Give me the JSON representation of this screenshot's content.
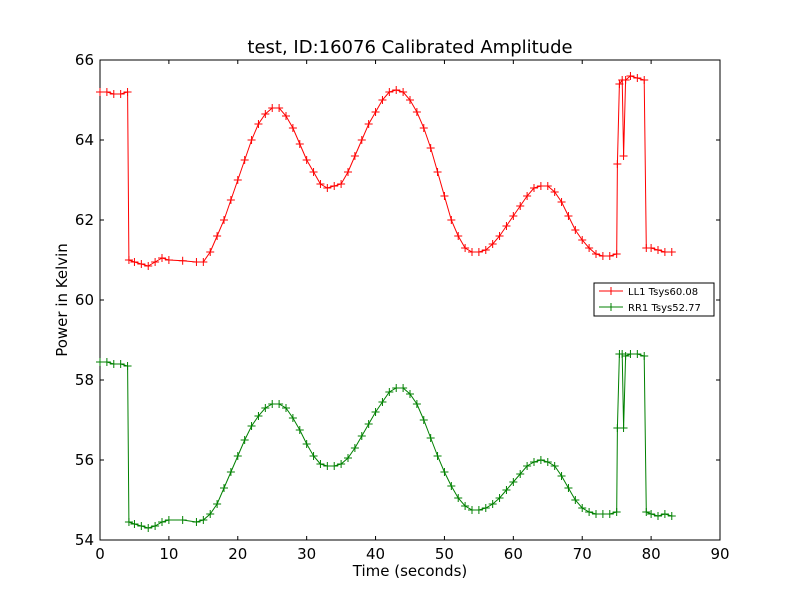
{
  "chart_data": {
    "type": "line",
    "title": "test, ID:16076 Calibrated Amplitude",
    "xlabel": "Time (seconds)",
    "ylabel": "Power in Kelvin",
    "xlim": [
      0,
      90
    ],
    "ylim": [
      54,
      66
    ],
    "xticks": [
      0,
      10,
      20,
      30,
      40,
      50,
      60,
      70,
      80,
      90
    ],
    "yticks": [
      54,
      56,
      58,
      60,
      62,
      64,
      66
    ],
    "grid": false,
    "legend_position": "center-right",
    "marker": "+",
    "series": [
      {
        "name": "LL1 Tsys60.08",
        "color": "#ff0000",
        "points": [
          [
            0,
            65.2
          ],
          [
            1,
            65.2
          ],
          [
            2,
            65.15
          ],
          [
            3,
            65.15
          ],
          [
            4,
            65.2
          ],
          [
            4.2,
            61.0
          ],
          [
            5,
            60.95
          ],
          [
            6,
            60.9
          ],
          [
            7,
            60.85
          ],
          [
            8,
            60.95
          ],
          [
            9,
            61.05
          ],
          [
            10,
            61.0
          ],
          [
            12,
            60.98
          ],
          [
            14,
            60.95
          ],
          [
            15,
            60.95
          ],
          [
            16,
            61.2
          ],
          [
            17,
            61.6
          ],
          [
            18,
            62.0
          ],
          [
            19,
            62.5
          ],
          [
            20,
            63.0
          ],
          [
            21,
            63.5
          ],
          [
            22,
            64.0
          ],
          [
            23,
            64.4
          ],
          [
            24,
            64.65
          ],
          [
            25,
            64.8
          ],
          [
            26,
            64.8
          ],
          [
            27,
            64.6
          ],
          [
            28,
            64.3
          ],
          [
            29,
            63.9
          ],
          [
            30,
            63.5
          ],
          [
            31,
            63.2
          ],
          [
            32,
            62.9
          ],
          [
            33,
            62.8
          ],
          [
            34,
            62.85
          ],
          [
            35,
            62.9
          ],
          [
            36,
            63.2
          ],
          [
            37,
            63.6
          ],
          [
            38,
            64.0
          ],
          [
            39,
            64.4
          ],
          [
            40,
            64.7
          ],
          [
            41,
            65.0
          ],
          [
            42,
            65.2
          ],
          [
            43,
            65.25
          ],
          [
            44,
            65.2
          ],
          [
            45,
            65.0
          ],
          [
            46,
            64.7
          ],
          [
            47,
            64.3
          ],
          [
            48,
            63.8
          ],
          [
            49,
            63.2
          ],
          [
            50,
            62.6
          ],
          [
            51,
            62.0
          ],
          [
            52,
            61.6
          ],
          [
            53,
            61.3
          ],
          [
            54,
            61.2
          ],
          [
            55,
            61.2
          ],
          [
            56,
            61.25
          ],
          [
            57,
            61.4
          ],
          [
            58,
            61.6
          ],
          [
            59,
            61.85
          ],
          [
            60,
            62.1
          ],
          [
            61,
            62.35
          ],
          [
            62,
            62.6
          ],
          [
            63,
            62.8
          ],
          [
            64,
            62.85
          ],
          [
            65,
            62.85
          ],
          [
            66,
            62.7
          ],
          [
            67,
            62.45
          ],
          [
            68,
            62.1
          ],
          [
            69,
            61.75
          ],
          [
            70,
            61.5
          ],
          [
            71,
            61.3
          ],
          [
            72,
            61.15
          ],
          [
            73,
            61.1
          ],
          [
            74,
            61.1
          ],
          [
            75,
            61.15
          ],
          [
            75.1,
            63.4
          ],
          [
            75.4,
            65.4
          ],
          [
            75.8,
            65.5
          ],
          [
            76.0,
            63.6
          ],
          [
            76.3,
            65.5
          ],
          [
            77,
            65.6
          ],
          [
            78,
            65.55
          ],
          [
            79,
            65.5
          ],
          [
            79.3,
            61.3
          ],
          [
            80,
            61.3
          ],
          [
            81,
            61.25
          ],
          [
            82,
            61.2
          ],
          [
            83,
            61.2
          ]
        ]
      },
      {
        "name": "RR1 Tsys52.77",
        "color": "#008000",
        "points": [
          [
            0,
            58.45
          ],
          [
            1,
            58.45
          ],
          [
            2,
            58.4
          ],
          [
            3,
            58.4
          ],
          [
            4,
            58.35
          ],
          [
            4.2,
            54.45
          ],
          [
            5,
            54.4
          ],
          [
            6,
            54.35
          ],
          [
            7,
            54.3
          ],
          [
            8,
            54.35
          ],
          [
            9,
            54.45
          ],
          [
            10,
            54.5
          ],
          [
            12,
            54.5
          ],
          [
            14,
            54.45
          ],
          [
            15,
            54.5
          ],
          [
            16,
            54.65
          ],
          [
            17,
            54.9
          ],
          [
            18,
            55.3
          ],
          [
            19,
            55.7
          ],
          [
            20,
            56.1
          ],
          [
            21,
            56.5
          ],
          [
            22,
            56.85
          ],
          [
            23,
            57.1
          ],
          [
            24,
            57.3
          ],
          [
            25,
            57.4
          ],
          [
            26,
            57.4
          ],
          [
            27,
            57.3
          ],
          [
            28,
            57.05
          ],
          [
            29,
            56.75
          ],
          [
            30,
            56.4
          ],
          [
            31,
            56.1
          ],
          [
            32,
            55.9
          ],
          [
            33,
            55.85
          ],
          [
            34,
            55.85
          ],
          [
            35,
            55.9
          ],
          [
            36,
            56.05
          ],
          [
            37,
            56.3
          ],
          [
            38,
            56.6
          ],
          [
            39,
            56.9
          ],
          [
            40,
            57.2
          ],
          [
            41,
            57.45
          ],
          [
            42,
            57.7
          ],
          [
            43,
            57.8
          ],
          [
            44,
            57.8
          ],
          [
            45,
            57.65
          ],
          [
            46,
            57.4
          ],
          [
            47,
            57.0
          ],
          [
            48,
            56.55
          ],
          [
            49,
            56.1
          ],
          [
            50,
            55.7
          ],
          [
            51,
            55.35
          ],
          [
            52,
            55.05
          ],
          [
            53,
            54.85
          ],
          [
            54,
            54.75
          ],
          [
            55,
            54.75
          ],
          [
            56,
            54.8
          ],
          [
            57,
            54.9
          ],
          [
            58,
            55.05
          ],
          [
            59,
            55.25
          ],
          [
            60,
            55.45
          ],
          [
            61,
            55.65
          ],
          [
            62,
            55.85
          ],
          [
            63,
            55.95
          ],
          [
            64,
            56.0
          ],
          [
            65,
            55.95
          ],
          [
            66,
            55.85
          ],
          [
            67,
            55.6
          ],
          [
            68,
            55.3
          ],
          [
            69,
            55.0
          ],
          [
            70,
            54.8
          ],
          [
            71,
            54.7
          ],
          [
            72,
            54.65
          ],
          [
            73,
            54.65
          ],
          [
            74,
            54.65
          ],
          [
            75,
            54.7
          ],
          [
            75.1,
            56.8
          ],
          [
            75.4,
            58.65
          ],
          [
            75.8,
            58.65
          ],
          [
            76.0,
            56.8
          ],
          [
            76.3,
            58.6
          ],
          [
            77,
            58.65
          ],
          [
            78,
            58.65
          ],
          [
            79,
            58.6
          ],
          [
            79.3,
            54.7
          ],
          [
            80,
            54.65
          ],
          [
            81,
            54.6
          ],
          [
            82,
            54.65
          ],
          [
            83,
            54.6
          ]
        ]
      }
    ]
  }
}
